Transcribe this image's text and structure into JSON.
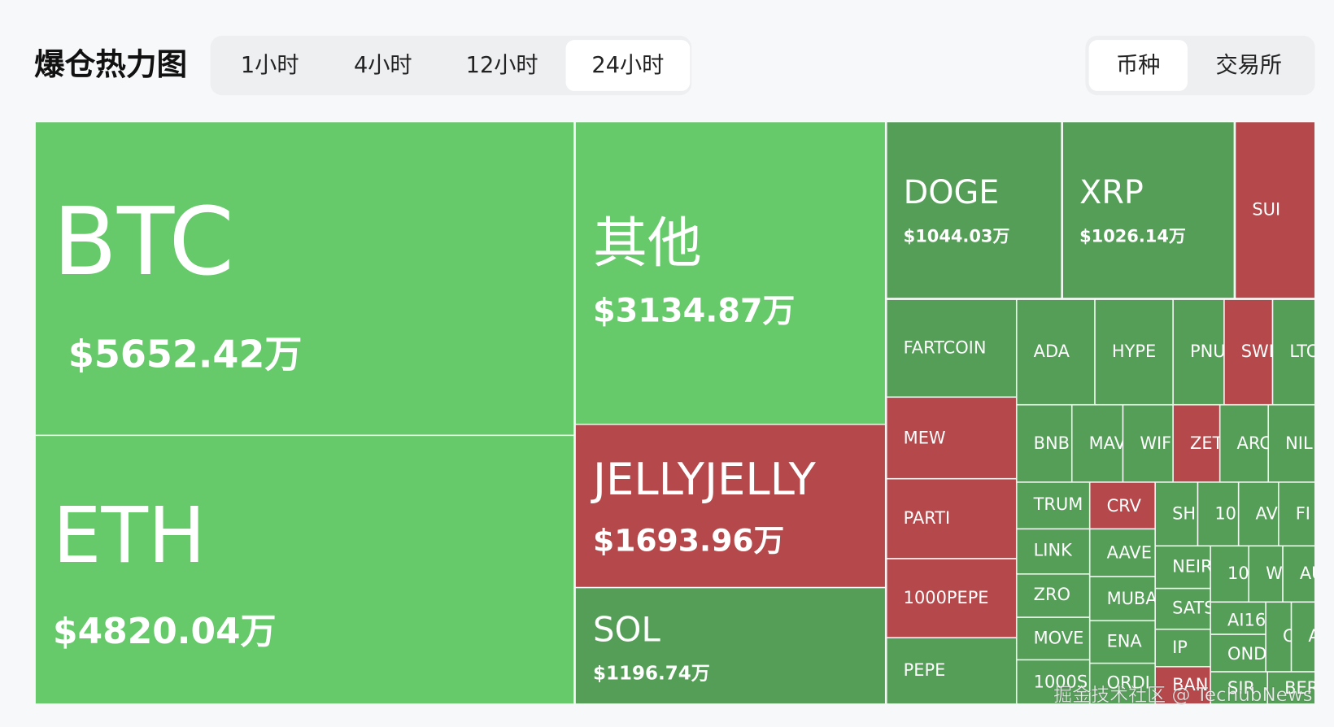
{
  "header": {
    "title": "爆仓热力图",
    "time_tabs": [
      {
        "label": "1小时",
        "active": false
      },
      {
        "label": "4小时",
        "active": false
      },
      {
        "label": "12小时",
        "active": false
      },
      {
        "label": "24小时",
        "active": true
      }
    ],
    "view_tabs": [
      {
        "label": "币种",
        "active": true
      },
      {
        "label": "交易所",
        "active": false
      }
    ]
  },
  "treemap": {
    "tiles": [
      {
        "label": "BTC",
        "value": "$5652.42万",
        "color": "#66c96a"
      },
      {
        "label": "ETH",
        "value": "$4820.04万",
        "color": "#66c96a"
      },
      {
        "label": "其他",
        "value": "$3134.87万",
        "color": "#66c96a"
      },
      {
        "label": "JELLYJELLY",
        "value": "$1693.96万",
        "color": "#b5484a"
      },
      {
        "label": "SOL",
        "value": "$1196.74万",
        "color": "#549e57"
      },
      {
        "label": "DOGE",
        "value": "$1044.03万",
        "color": "#549e57"
      },
      {
        "label": "XRP",
        "value": "$1026.14万",
        "color": "#549e57"
      },
      {
        "label": "SUI",
        "color": "#b5484a"
      },
      {
        "label": "FARTCOIN",
        "color": "#549e57"
      },
      {
        "label": "MEW",
        "color": "#b5484a"
      },
      {
        "label": "PARTI",
        "color": "#b5484a"
      },
      {
        "label": "1000PEPE",
        "color": "#b5484a"
      },
      {
        "label": "PEPE",
        "color": "#549e57"
      },
      {
        "label": "ADA",
        "color": "#549e57"
      },
      {
        "label": "HYPE",
        "color": "#549e57"
      },
      {
        "label": "PNU",
        "color": "#549e57"
      },
      {
        "label": "SWI",
        "color": "#b5484a"
      },
      {
        "label": "LTC",
        "color": "#549e57"
      },
      {
        "label": "BNB",
        "color": "#549e57"
      },
      {
        "label": "MAV",
        "color": "#549e57"
      },
      {
        "label": "WIF",
        "color": "#549e57"
      },
      {
        "label": "ZET",
        "color": "#b5484a"
      },
      {
        "label": "ARC",
        "color": "#549e57"
      },
      {
        "label": "NIL",
        "color": "#549e57"
      },
      {
        "label": "TRUM",
        "color": "#549e57"
      },
      {
        "label": "LINK",
        "color": "#549e57"
      },
      {
        "label": "ZRO",
        "color": "#549e57"
      },
      {
        "label": "MOVE",
        "color": "#549e57"
      },
      {
        "label": "1000S",
        "color": "#549e57"
      },
      {
        "label": "CRV",
        "color": "#b5484a"
      },
      {
        "label": "AAVE",
        "color": "#549e57"
      },
      {
        "label": "MUBA",
        "color": "#549e57"
      },
      {
        "label": "ENA",
        "color": "#549e57"
      },
      {
        "label": "ORDI",
        "color": "#549e57"
      },
      {
        "label": "SH",
        "color": "#549e57"
      },
      {
        "label": "10",
        "color": "#549e57"
      },
      {
        "label": "AV",
        "color": "#549e57"
      },
      {
        "label": "FI",
        "color": "#549e57"
      },
      {
        "label": "NEIR",
        "color": "#549e57"
      },
      {
        "label": "SATS",
        "color": "#549e57"
      },
      {
        "label": "IP",
        "color": "#549e57"
      },
      {
        "label": "BAN",
        "color": "#b5484a"
      },
      {
        "label": "10",
        "color": "#549e57"
      },
      {
        "label": "W",
        "color": "#549e57"
      },
      {
        "label": "AU",
        "color": "#549e57"
      },
      {
        "label": "AI16",
        "color": "#549e57"
      },
      {
        "label": "C",
        "color": "#549e57"
      },
      {
        "label": "A",
        "color": "#549e57"
      },
      {
        "label": "OND",
        "color": "#549e57"
      },
      {
        "label": "SIR",
        "color": "#549e57"
      },
      {
        "label": "BER",
        "color": "#549e57"
      }
    ]
  },
  "watermark": "掘金技术社区 @ TechubNews"
}
